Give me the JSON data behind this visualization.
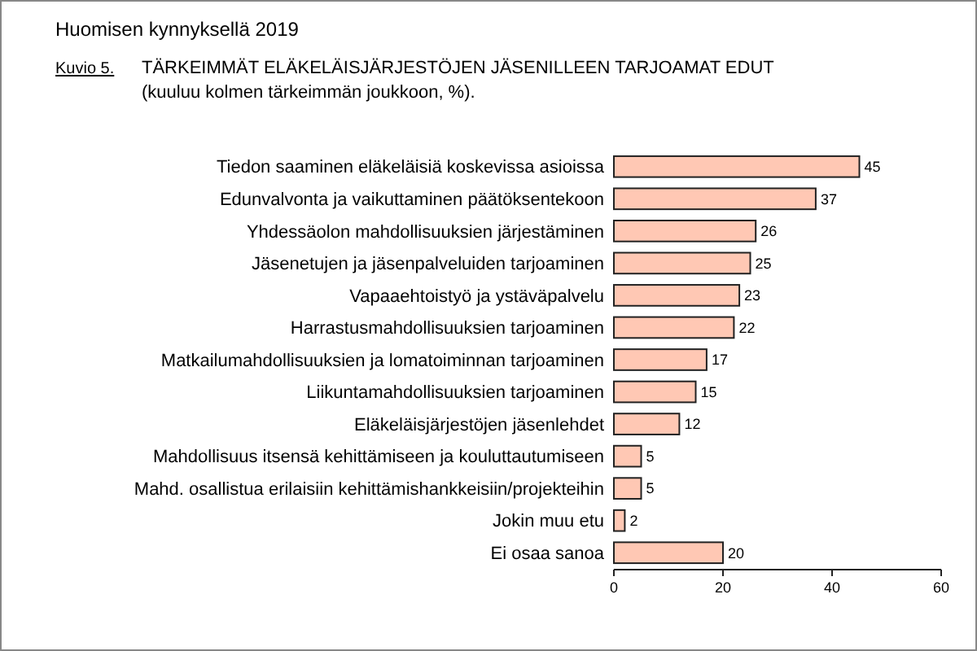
{
  "chart_data": {
    "type": "bar",
    "orientation": "horizontal",
    "title": "TÄRKEIMMÄT ELÄKELÄISJÄRJESTÖJEN JÄSENILLEEN TARJOAMAT EDUT",
    "subtitle": "(kuuluu kolmen tärkeimmän joukkoon, %).",
    "annotations": [
      "Huomisen kynnyksellä 2019",
      "Kuvio 5."
    ],
    "categories": [
      "Tiedon saaminen eläkeläisiä koskevissa asioissa",
      "Edunvalvonta ja vaikuttaminen päätöksentekoon",
      "Yhdessäolon mahdollisuuksien järjestäminen",
      "Jäsenetujen ja jäsenpalveluiden tarjoaminen",
      "Vapaaehtoistyö ja ystäväpalvelu",
      "Harrastusmahdollisuuksien tarjoaminen",
      "Matkailumahdollisuuksien ja lomatoiminnan tarjoaminen",
      "Liikuntamahdollisuuksien tarjoaminen",
      "Eläkeläisjärjestöjen jäsenlehdet",
      "Mahdollisuus itsensä kehittämiseen ja kouluttautumiseen",
      "Mahd. osallistua erilaisiin kehittämishankkeisiin/projekteihin",
      "Jokin muu etu",
      "Ei osaa sanoa"
    ],
    "values": [
      45,
      37,
      26,
      25,
      23,
      22,
      17,
      15,
      12,
      5,
      5,
      2,
      20
    ],
    "color": "#ffc8b4",
    "data_labels": true,
    "xlim": [
      0,
      60
    ],
    "xticks": [
      0,
      20,
      40,
      60
    ],
    "grid": false
  }
}
